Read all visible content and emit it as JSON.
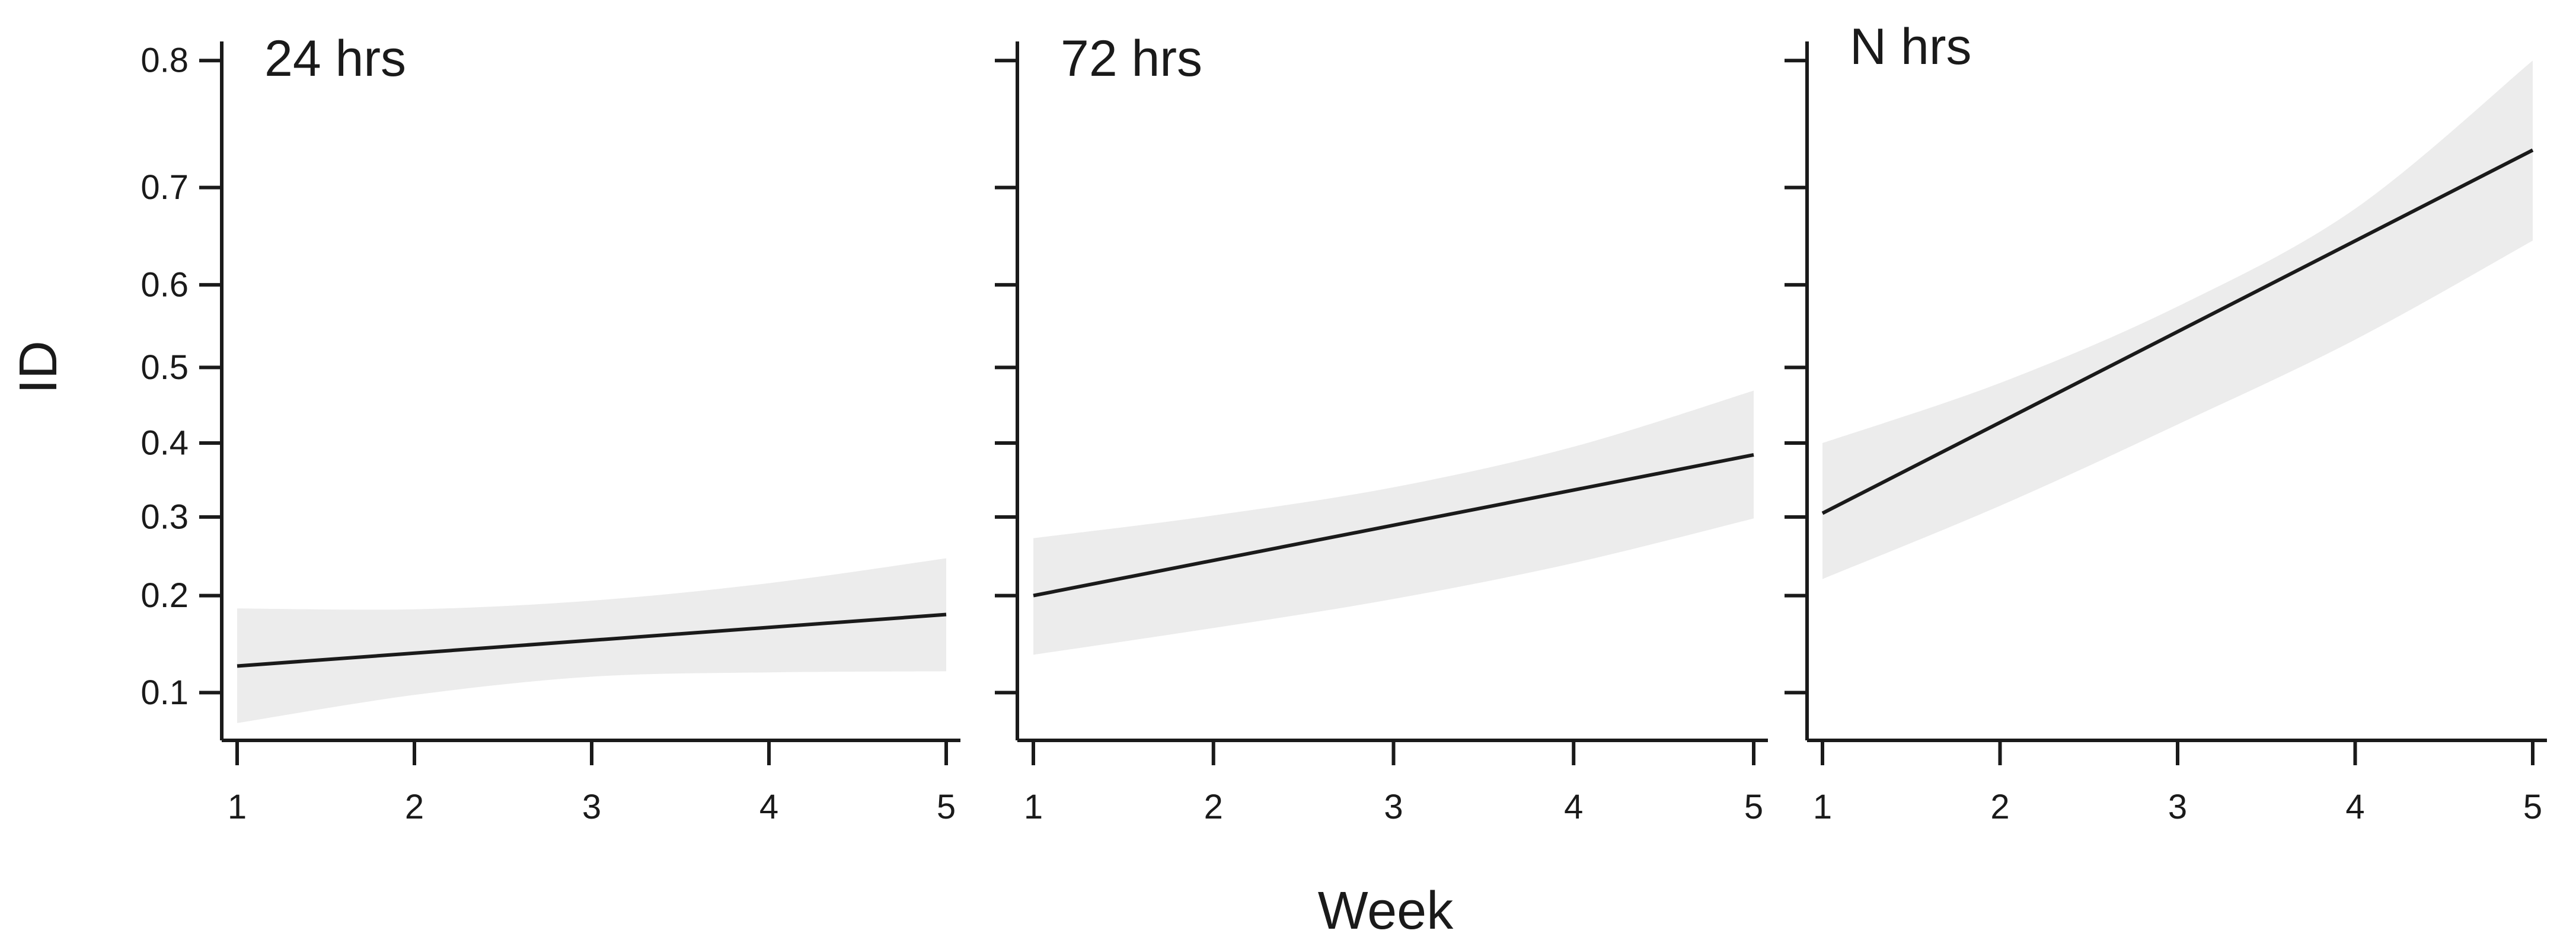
{
  "chart_data": {
    "type": "line",
    "title": "",
    "xlabel": "Week",
    "ylabel": "ID",
    "x_ticks": [
      "1",
      "2",
      "3",
      "4",
      "5"
    ],
    "y_ticks": [
      "0.1",
      "0.2",
      "0.3",
      "0.4",
      "0.5",
      "0.6",
      "0.7",
      "0.8"
    ],
    "y_tick_values": [
      0.1,
      0.2,
      0.3,
      0.4,
      0.5,
      0.6,
      0.7,
      0.8
    ],
    "x_range": [
      1,
      5
    ],
    "y_axis_scale": "reversed-cloglog",
    "grid": false,
    "legend": "none",
    "band_meaning": "confidence band",
    "panels": [
      {
        "title": "24 hrs",
        "line": {
          "weeks": [
            1,
            5
          ],
          "id": [
            0.124,
            0.178
          ]
        },
        "band": {
          "weeks": [
            1,
            2,
            3,
            4,
            5
          ],
          "upper": [
            0.185,
            0.184,
            0.194,
            0.215,
            0.246
          ],
          "lower": [
            0.076,
            0.098,
            0.114,
            0.118,
            0.119
          ]
        }
      },
      {
        "title": "72 hrs",
        "line": {
          "weeks": [
            1,
            5
          ],
          "id": [
            0.2,
            0.384
          ]
        },
        "band": {
          "weeks": [
            1,
            2,
            3,
            4,
            5
          ],
          "upper": [
            0.272,
            0.302,
            0.34,
            0.395,
            0.47
          ],
          "lower": [
            0.135,
            0.163,
            0.196,
            0.24,
            0.298
          ]
        }
      },
      {
        "title": "N hrs",
        "line": {
          "weeks": [
            1,
            5
          ],
          "id": [
            0.305,
            0.733
          ]
        },
        "band": {
          "weeks": [
            1,
            2,
            3,
            4,
            5
          ],
          "upper": [
            0.4,
            0.48,
            0.575,
            0.68,
            0.8
          ],
          "lower": [
            0.22,
            0.315,
            0.425,
            0.535,
            0.648
          ]
        }
      }
    ],
    "colors": {
      "line": "#1a1a1a",
      "band": "#ececec",
      "axis": "#1a1a1a",
      "background": "#ffffff"
    }
  }
}
